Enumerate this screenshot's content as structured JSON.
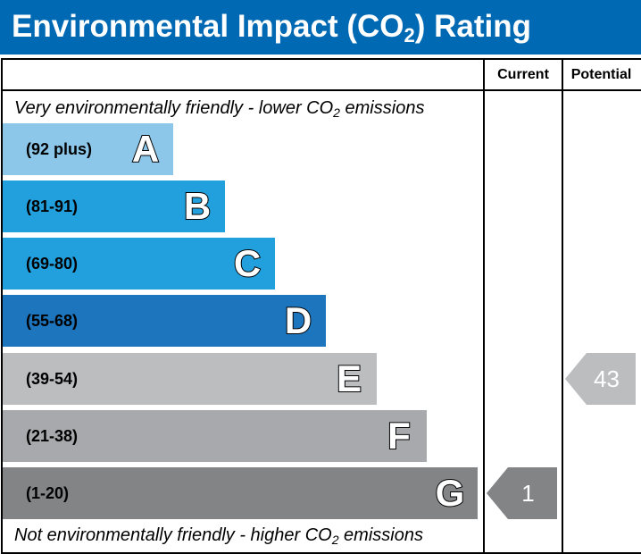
{
  "header": {
    "title_part1": "Environmental Impact (CO",
    "title_sub": "2",
    "title_part2": ") Rating"
  },
  "columns": {
    "current": "Current",
    "potential": "Potential"
  },
  "notes": {
    "top_part1": "Very environmentally friendly - lower CO",
    "top_sub": "2",
    "top_part2": " emissions",
    "bottom_part1": "Not environmentally friendly - higher CO",
    "bottom_sub": "2",
    "bottom_part2": " emissions"
  },
  "colors": {
    "header": "#0069b4",
    "A": "#8cc7ea",
    "B": "#22a0de",
    "C": "#22a0de",
    "D": "#1c75bd",
    "E": "#bbbdbf",
    "F": "#a7a9ac",
    "G": "#838485"
  },
  "chart_data": {
    "type": "bar",
    "bands": [
      {
        "letter": "A",
        "range": "(92 plus)",
        "min": 92,
        "max": null
      },
      {
        "letter": "B",
        "range": "(81-91)",
        "min": 81,
        "max": 91
      },
      {
        "letter": "C",
        "range": "(69-80)",
        "min": 69,
        "max": 80
      },
      {
        "letter": "D",
        "range": "(55-68)",
        "min": 55,
        "max": 68
      },
      {
        "letter": "E",
        "range": "(39-54)",
        "min": 39,
        "max": 54
      },
      {
        "letter": "F",
        "range": "(21-38)",
        "min": 21,
        "max": 38
      },
      {
        "letter": "G",
        "range": "(1-20)",
        "min": 1,
        "max": 20
      }
    ],
    "current": {
      "value": 1,
      "label": "1",
      "band": "G"
    },
    "potential": {
      "value": 43,
      "label": "43",
      "band": "E"
    }
  }
}
